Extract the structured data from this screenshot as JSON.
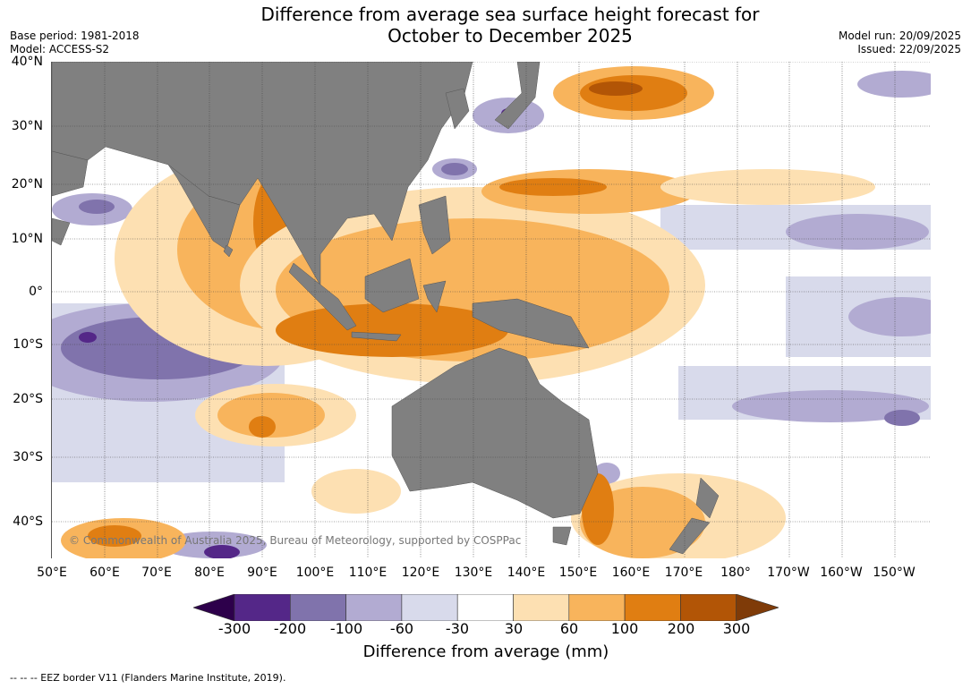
{
  "header": {
    "title_line1": "Difference from average sea surface height forecast for",
    "title_line2": "October to December 2025",
    "base_period": "Base period: 1981-2018",
    "model": "Model: ACCESS-S2",
    "model_run": "Model run: 20/09/2025",
    "issued": "Issued: 22/09/2025"
  },
  "map": {
    "lat_labels": [
      "40°N",
      "30°N",
      "20°N",
      "10°N",
      "0°",
      "10°S",
      "20°S",
      "30°S",
      "40°S"
    ],
    "lon_labels": [
      "50°E",
      "60°E",
      "70°E",
      "80°E",
      "90°E",
      "100°E",
      "110°E",
      "120°E",
      "130°E",
      "140°E",
      "150°E",
      "160°E",
      "170°E",
      "180°",
      "170°W",
      "160°W",
      "150°W"
    ],
    "copyright": "© Commonwealth of Australia 2025, Bureau of Meteorology, supported by COSPPac",
    "colors": {
      "land": "#808080",
      "grid": "#444444",
      "p30": "#fde0b2",
      "p60": "#f8b45c",
      "p100": "#e07e12",
      "p200": "#b25506",
      "p300": "#7f3b08",
      "n30": "#d8daeb",
      "n60": "#b2abd2",
      "n100": "#8073ac",
      "n200": "#542788",
      "n300": "#2d004b"
    }
  },
  "colorbar": {
    "ticks": [
      "-300",
      "-200",
      "-100",
      "-60",
      "-30",
      "30",
      "60",
      "100",
      "200",
      "300"
    ],
    "colors": [
      "#2d004b",
      "#542788",
      "#8073ac",
      "#b2abd2",
      "#d8daeb",
      "#ffffff",
      "#fde0b2",
      "#f8b45c",
      "#e07e12",
      "#b25506",
      "#7f3b08"
    ],
    "label": "Difference from average (mm)"
  },
  "footnote": "-- -- -- EEZ border V11 (Flanders Marine Institute, 2019)."
}
